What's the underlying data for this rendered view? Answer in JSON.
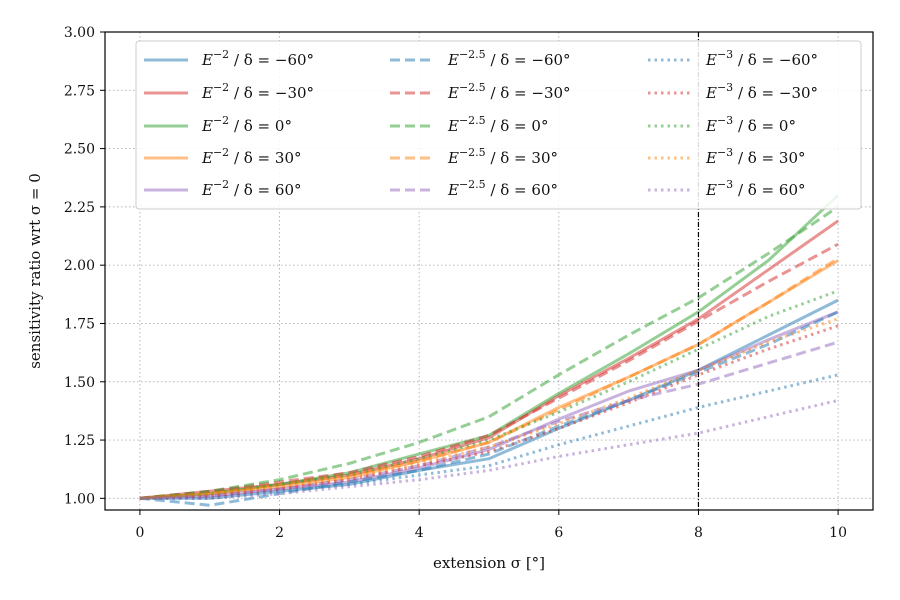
{
  "chart_data": {
    "type": "line",
    "xlabel": "extension σ [°]",
    "ylabel": "sensitivity ratio wrt σ = 0",
    "xlim": [
      -0.5,
      10.5
    ],
    "ylim": [
      0.95,
      3.0
    ],
    "xticks": [
      0,
      2,
      4,
      6,
      8,
      10
    ],
    "yticks": [
      1.0,
      1.25,
      1.5,
      1.75,
      2.0,
      2.25,
      2.5,
      2.75,
      3.0
    ],
    "xtick_labels": [
      "0",
      "2",
      "4",
      "6",
      "8",
      "10"
    ],
    "ytick_labels": [
      "1.00",
      "1.25",
      "1.50",
      "1.75",
      "2.00",
      "2.25",
      "2.50",
      "2.75",
      "3.00"
    ],
    "grid": true,
    "legend_position": "top",
    "vline": {
      "x": 8
    },
    "x": [
      0,
      1,
      2,
      3,
      4,
      5,
      6,
      7,
      8,
      9,
      10
    ],
    "series": [
      {
        "name": "E^{-2} / δ = −60°",
        "spectrum": "E^{-2}",
        "declination": "δ = −60°",
        "color": "#1f77b4",
        "style": "solid",
        "values": [
          1.0,
          1.0,
          1.03,
          1.06,
          1.12,
          1.17,
          1.3,
          1.42,
          1.55,
          1.7,
          1.85
        ]
      },
      {
        "name": "E^{-2} / δ = −30°",
        "spectrum": "E^{-2}",
        "declination": "δ = −30°",
        "color": "#d62728",
        "style": "solid",
        "values": [
          1.0,
          1.03,
          1.06,
          1.1,
          1.17,
          1.26,
          1.44,
          1.6,
          1.77,
          1.98,
          2.19
        ]
      },
      {
        "name": "E^{-2} / δ = 0°",
        "spectrum": "E^{-2}",
        "declination": "δ = 0°",
        "color": "#2ca02c",
        "style": "solid",
        "values": [
          1.0,
          1.02,
          1.06,
          1.11,
          1.19,
          1.27,
          1.45,
          1.62,
          1.8,
          2.02,
          2.3
        ]
      },
      {
        "name": "E^{-2} / δ = 30°",
        "spectrum": "E^{-2}",
        "declination": "δ = 30°",
        "color": "#ff7f0e",
        "style": "solid",
        "values": [
          1.0,
          1.02,
          1.05,
          1.09,
          1.16,
          1.24,
          1.39,
          1.52,
          1.66,
          1.84,
          2.02
        ]
      },
      {
        "name": "E^{-2} / δ = 60°",
        "spectrum": "E^{-2}",
        "declination": "δ = 60°",
        "color": "#9467bd",
        "style": "solid",
        "values": [
          1.0,
          1.01,
          1.04,
          1.07,
          1.13,
          1.21,
          1.34,
          1.46,
          1.55,
          1.68,
          1.8
        ]
      },
      {
        "name": "E^{-2.5} / δ = −60°",
        "spectrum": "E^{-2.5}",
        "declination": "δ = −60°",
        "color": "#1f77b4",
        "style": "dashed",
        "values": [
          1.0,
          0.97,
          1.02,
          1.07,
          1.12,
          1.19,
          1.31,
          1.42,
          1.54,
          1.66,
          1.8
        ]
      },
      {
        "name": "E^{-2.5} / δ = −30°",
        "spectrum": "E^{-2.5}",
        "declination": "δ = −30°",
        "color": "#d62728",
        "style": "dashed",
        "values": [
          1.0,
          1.03,
          1.07,
          1.11,
          1.18,
          1.27,
          1.43,
          1.59,
          1.76,
          1.93,
          2.09
        ]
      },
      {
        "name": "E^{-2.5} / δ = 0°",
        "spectrum": "E^{-2.5}",
        "declination": "δ = 0°",
        "color": "#2ca02c",
        "style": "dashed",
        "values": [
          1.0,
          1.03,
          1.08,
          1.15,
          1.24,
          1.35,
          1.53,
          1.7,
          1.86,
          2.05,
          2.25
        ]
      },
      {
        "name": "E^{-2.5} / δ = 30°",
        "spectrum": "E^{-2.5}",
        "declination": "δ = 30°",
        "color": "#ff7f0e",
        "style": "dashed",
        "values": [
          1.0,
          1.02,
          1.06,
          1.1,
          1.16,
          1.24,
          1.38,
          1.52,
          1.66,
          1.84,
          2.03
        ]
      },
      {
        "name": "E^{-2.5} / δ = 60°",
        "spectrum": "E^{-2.5}",
        "declination": "δ = 60°",
        "color": "#9467bd",
        "style": "dashed",
        "values": [
          1.0,
          1.01,
          1.04,
          1.08,
          1.14,
          1.22,
          1.33,
          1.42,
          1.49,
          1.58,
          1.67
        ]
      },
      {
        "name": "E^{-3} / δ = −60°",
        "spectrum": "E^{-3}",
        "declination": "δ = −60°",
        "color": "#1f77b4",
        "style": "dotted",
        "values": [
          1.0,
          1.0,
          1.03,
          1.06,
          1.1,
          1.14,
          1.23,
          1.31,
          1.39,
          1.46,
          1.53
        ]
      },
      {
        "name": "E^{-3} / δ = −30°",
        "spectrum": "E^{-3}",
        "declination": "δ = −30°",
        "color": "#d62728",
        "style": "dotted",
        "values": [
          1.0,
          1.01,
          1.04,
          1.08,
          1.14,
          1.2,
          1.3,
          1.41,
          1.53,
          1.64,
          1.74
        ]
      },
      {
        "name": "E^{-3} / δ = 0°",
        "spectrum": "E^{-3}",
        "declination": "δ = 0°",
        "color": "#2ca02c",
        "style": "dotted",
        "values": [
          1.0,
          1.02,
          1.06,
          1.1,
          1.17,
          1.25,
          1.37,
          1.5,
          1.64,
          1.78,
          1.89
        ]
      },
      {
        "name": "E^{-3} / δ = 30°",
        "spectrum": "E^{-3}",
        "declination": "δ = 30°",
        "color": "#ff7f0e",
        "style": "dotted",
        "values": [
          1.0,
          1.02,
          1.05,
          1.09,
          1.15,
          1.22,
          1.32,
          1.43,
          1.55,
          1.67,
          1.77
        ]
      },
      {
        "name": "E^{-3} / δ = 60°",
        "spectrum": "E^{-3}",
        "declination": "δ = 60°",
        "color": "#9467bd",
        "style": "dotted",
        "values": [
          1.0,
          1.0,
          1.02,
          1.05,
          1.08,
          1.12,
          1.18,
          1.23,
          1.28,
          1.35,
          1.42
        ]
      }
    ]
  }
}
